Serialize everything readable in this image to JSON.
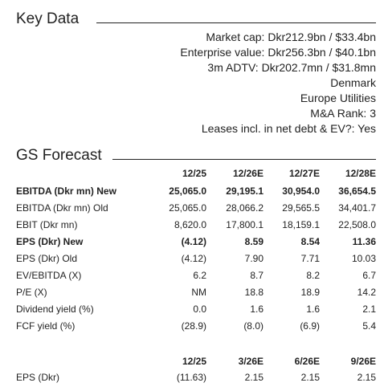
{
  "key_data": {
    "title": "Key Data",
    "lines": [
      "Market cap: Dkr212.9bn / $33.4bn",
      "Enterprise value: Dkr256.3bn / $40.1bn",
      "3m ADTV: Dkr202.7mn / $31.8mn",
      "Denmark",
      "Europe Utilities",
      "M&A Rank: 3",
      "Leases incl. in net debt & EV?: Yes"
    ]
  },
  "forecast": {
    "title": "GS Forecast",
    "header": [
      "12/25",
      "12/26E",
      "12/27E",
      "12/28E"
    ],
    "rows": [
      {
        "label": "EBITDA (Dkr mn) New",
        "bold": true,
        "values": [
          "25,065.0",
          "29,195.1",
          "30,954.0",
          "36,654.5"
        ]
      },
      {
        "label": "EBITDA (Dkr mn) Old",
        "values": [
          "25,065.0",
          "28,066.2",
          "29,565.5",
          "34,401.7"
        ]
      },
      {
        "label": "EBIT (Dkr mn)",
        "values": [
          "8,620.0",
          "17,800.1",
          "18,159.1",
          "22,508.0"
        ]
      },
      {
        "label": "EPS (Dkr) New",
        "bold": true,
        "values": [
          "(4.12)",
          "8.59",
          "8.54",
          "11.36"
        ]
      },
      {
        "label": "EPS (Dkr) Old",
        "values": [
          "(4.12)",
          "7.90",
          "7.71",
          "10.03"
        ]
      },
      {
        "label": "EV/EBITDA (X)",
        "values": [
          "6.2",
          "8.7",
          "8.2",
          "6.7"
        ]
      },
      {
        "label": "P/E (X)",
        "values": [
          "NM",
          "18.8",
          "18.9",
          "14.2"
        ]
      },
      {
        "label": "Dividend yield (%)",
        "values": [
          "0.0",
          "1.6",
          "1.6",
          "2.1"
        ]
      },
      {
        "label": "FCF yield (%)",
        "values": [
          "(28.9)",
          "(8.0)",
          "(6.9)",
          "5.4"
        ]
      }
    ],
    "quarterly": {
      "header": [
        "12/25",
        "3/26E",
        "6/26E",
        "9/26E"
      ],
      "rows": [
        {
          "label": "EPS (Dkr)",
          "values": [
            "(11.63)",
            "2.15",
            "2.15",
            "2.15"
          ]
        }
      ]
    }
  }
}
